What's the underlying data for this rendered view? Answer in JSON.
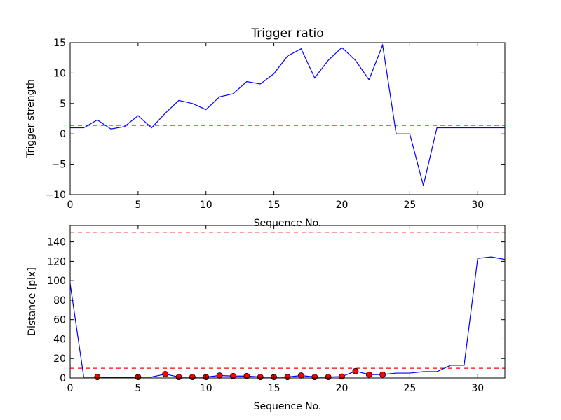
{
  "chart_data": [
    {
      "type": "line",
      "title": "Trigger ratio",
      "xlabel": "Sequence No.",
      "ylabel": "Trigger strength",
      "xlim": [
        0,
        32
      ],
      "ylim": [
        -10,
        15
      ],
      "xticks": [
        0,
        5,
        10,
        15,
        20,
        25,
        30
      ],
      "yticks": [
        -10,
        -5,
        0,
        5,
        10,
        15
      ],
      "grid": false,
      "series": [
        {
          "color": "#0000ff",
          "x": [
            0,
            1,
            2,
            3,
            4,
            5,
            6,
            7,
            8,
            9,
            10,
            11,
            12,
            13,
            14,
            15,
            16,
            17,
            18,
            19,
            20,
            21,
            22,
            23,
            24,
            25,
            26,
            27,
            28,
            29,
            30,
            31,
            32
          ],
          "y": [
            1.0,
            1.0,
            2.3,
            0.8,
            1.2,
            3.0,
            1.0,
            3.4,
            5.5,
            5.0,
            4.0,
            6.1,
            6.6,
            8.6,
            8.2,
            9.9,
            12.8,
            14.0,
            9.2,
            12.1,
            14.2,
            12.1,
            8.9,
            14.6,
            0.0,
            0.0,
            -8.5,
            1.0,
            1.0,
            1.0,
            1.0,
            1.0,
            1.0
          ]
        }
      ],
      "reference_lines": [
        {
          "y": 1.4,
          "color": "#ff0000",
          "style": "dashed"
        }
      ]
    },
    {
      "type": "line",
      "title": "",
      "xlabel": "Sequence No.",
      "ylabel": "Distance [pix]",
      "xlim": [
        0,
        32
      ],
      "ylim": [
        0,
        157
      ],
      "xticks": [
        0,
        5,
        10,
        15,
        20,
        25,
        30
      ],
      "yticks": [
        0,
        20,
        40,
        60,
        80,
        100,
        120,
        140
      ],
      "grid": false,
      "series": [
        {
          "color": "#0000ff",
          "x": [
            0,
            1,
            2,
            3,
            4,
            5,
            6,
            7,
            8,
            9,
            10,
            11,
            12,
            13,
            14,
            15,
            16,
            17,
            18,
            19,
            20,
            21,
            22,
            23,
            24,
            25,
            26,
            27,
            28,
            29,
            30,
            31,
            32
          ],
          "y": [
            97,
            1,
            1,
            0.5,
            0.5,
            1,
            1,
            4,
            1,
            1,
            1,
            2.5,
            2,
            2,
            1,
            1,
            1,
            2.5,
            1,
            1,
            1.5,
            7,
            3.5,
            3.5,
            5,
            5,
            6.5,
            6.5,
            13,
            13,
            123,
            124.5,
            122
          ]
        },
        {
          "color": "#ff0000",
          "marker": "circle",
          "x": [
            2,
            5,
            7,
            8,
            9,
            10,
            11,
            12,
            13,
            14,
            15,
            16,
            17,
            18,
            19,
            20,
            21,
            22,
            23
          ],
          "y": [
            1,
            1,
            4,
            1,
            1,
            1,
            2.5,
            2,
            2,
            1,
            1,
            1,
            2.5,
            1,
            1,
            1.5,
            7,
            3.5,
            3.5
          ]
        }
      ],
      "reference_lines": [
        {
          "y": 150,
          "color": "#ff0000",
          "style": "dashed"
        },
        {
          "y": 10,
          "color": "#ff0000",
          "style": "dashed"
        }
      ]
    }
  ]
}
